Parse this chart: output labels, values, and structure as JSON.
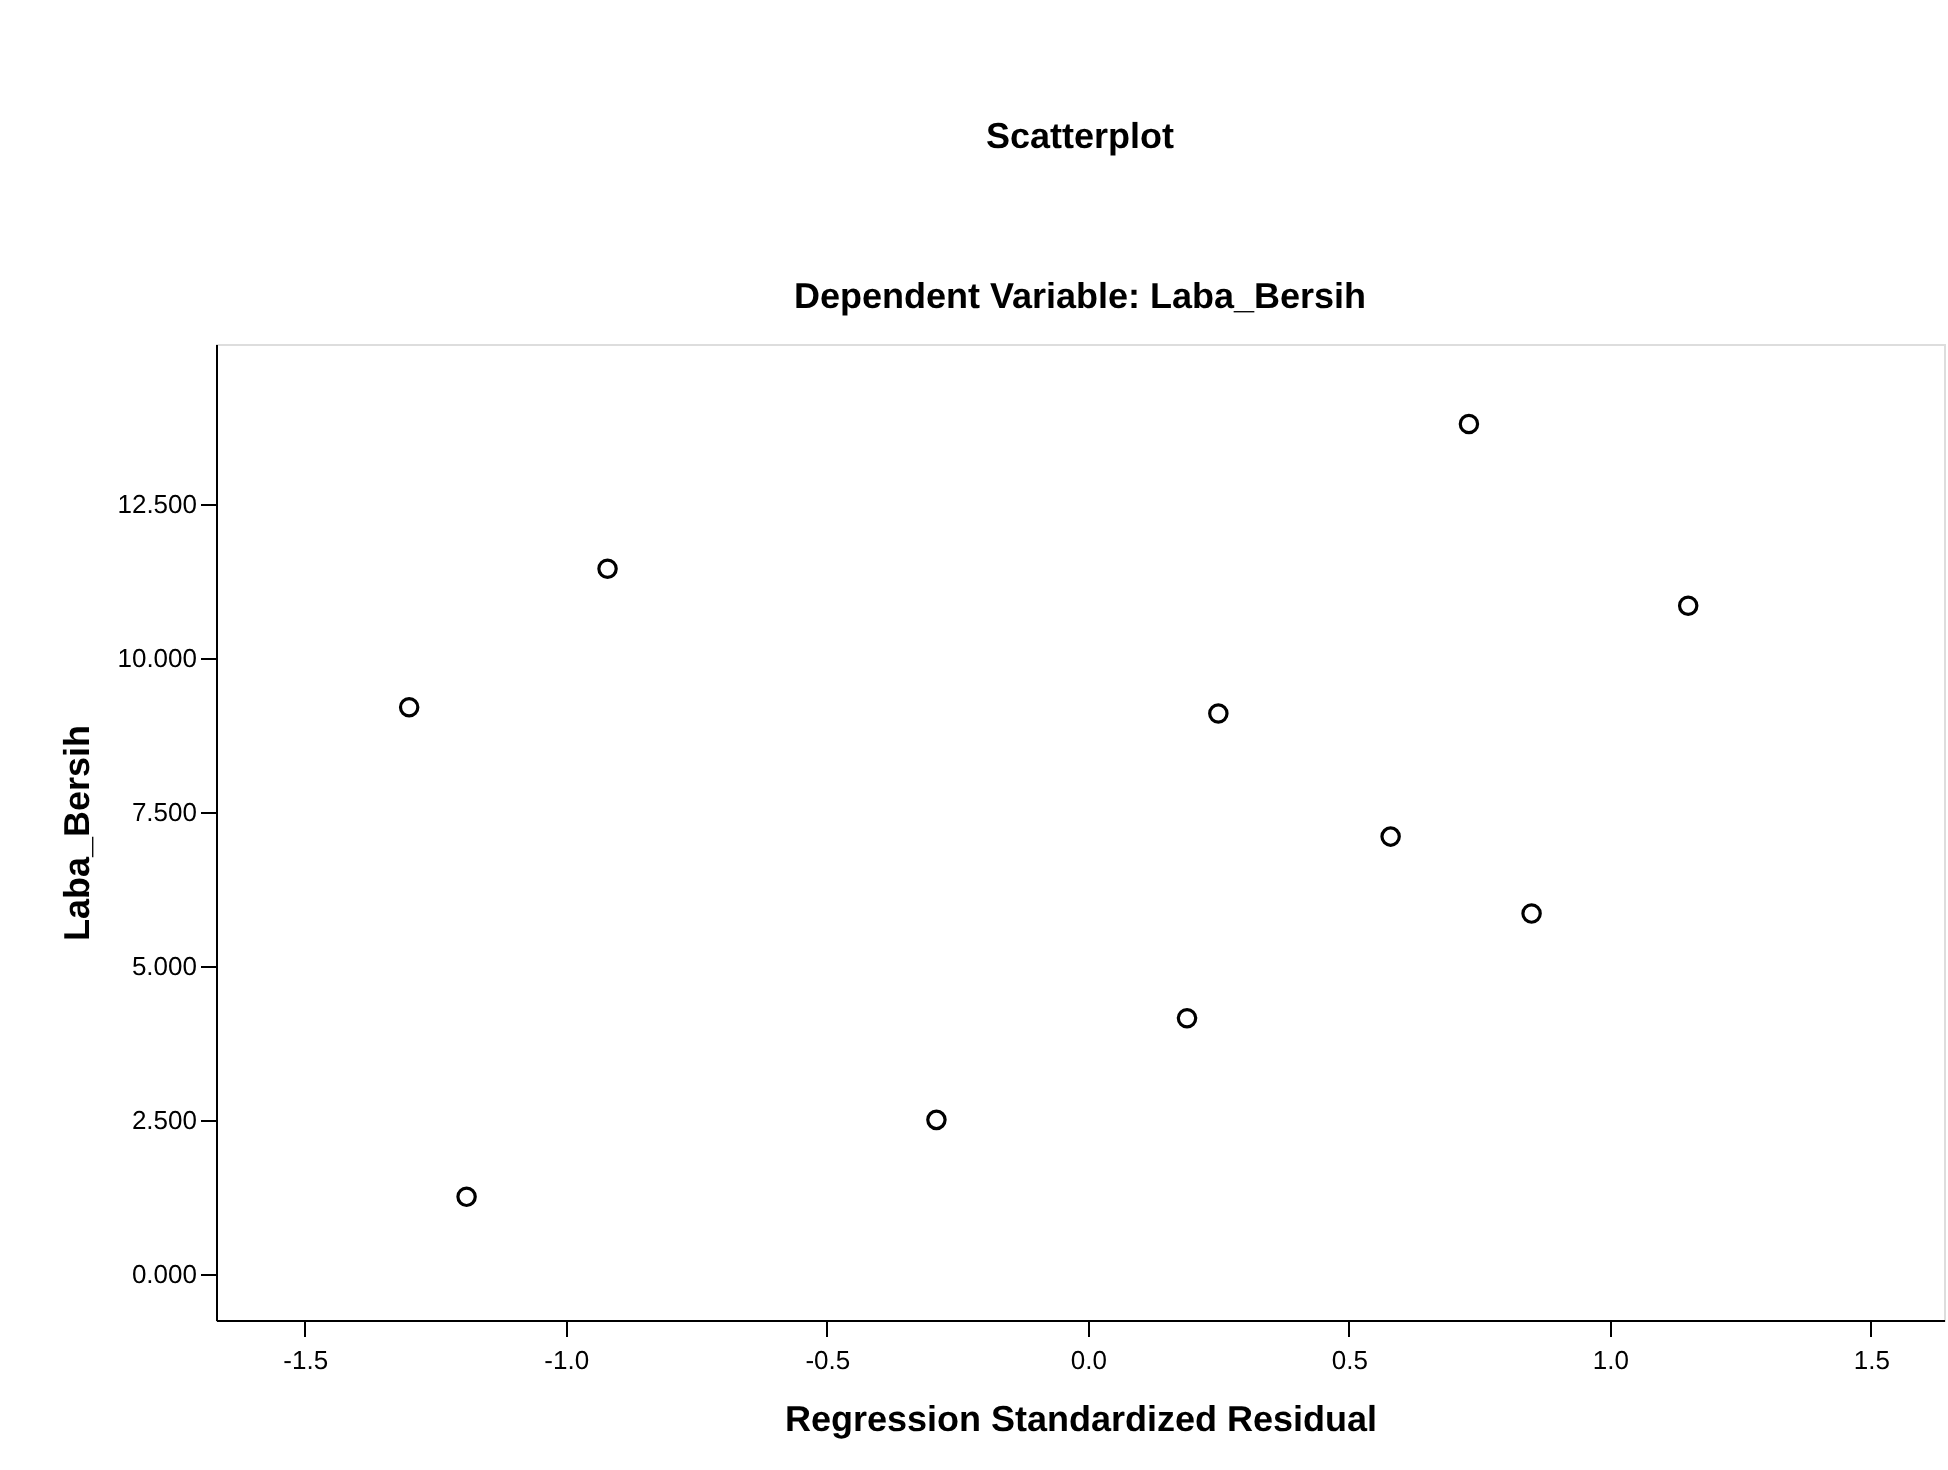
{
  "chart_data": {
    "type": "scatter",
    "title": "Scatterplot",
    "subtitle": "Dependent Variable: Laba_Bersih",
    "xlabel": "Regression Standardized Residual",
    "ylabel": "Laba_Bersih",
    "x": [
      -1.3,
      -0.92,
      0.25,
      0.73,
      1.15,
      -1.19,
      -0.29,
      0.19,
      0.58,
      0.85
    ],
    "series": [
      {
        "color": "#000000",
        "values": [
          9.2,
          11.45,
          9.1,
          13.8,
          10.85,
          1.25,
          2.5,
          4.15,
          7.1,
          5.85
        ]
      }
    ],
    "xlim": [
      -1.67,
      1.64
    ],
    "xticks": [
      -1.5,
      {
        "value": -1.0,
        "label": "-1.0"
      },
      -0.5,
      {
        "value": 0.0,
        "label": "0.0"
      },
      0.5,
      {
        "value": 1.0,
        "label": "1.0"
      },
      1.5
    ],
    "ylim": [
      -0.75,
      15.1
    ],
    "yticks": [
      {
        "value": 0,
        "label": "0.000"
      },
      {
        "value": 2.5,
        "label": "2.500"
      },
      {
        "value": 5.0,
        "label": "5.000"
      },
      {
        "value": 7.5,
        "label": "7.500"
      },
      {
        "value": 10.0,
        "label": "10.000"
      },
      {
        "value": 12.5,
        "label": "12.500"
      }
    ],
    "grid": false,
    "marker": "circle",
    "legend": false
  }
}
